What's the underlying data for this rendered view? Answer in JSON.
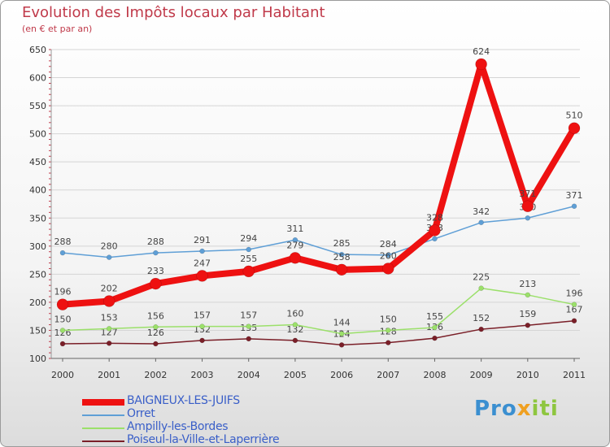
{
  "header": {
    "title": "Evolution des Impôts locaux par Habitant",
    "subtitle": "(en € et par an)"
  },
  "brand": {
    "part1": "Pro",
    "part2": "x",
    "part3": "iti"
  },
  "colors": {
    "title": "#c03a4a",
    "legend_text": "#3a5fc8",
    "grid": "#d5d5d5",
    "axis_text": "#333333"
  },
  "chart_data": {
    "type": "line",
    "title": "Evolution des Impôts locaux par Habitant",
    "subtitle": "(en € et par an)",
    "xlabel": "",
    "ylabel": "",
    "x": [
      "2000",
      "2001",
      "2002",
      "2003",
      "2004",
      "2005",
      "2006",
      "2007",
      "2008",
      "2009",
      "2010",
      "2011"
    ],
    "ylim": [
      100,
      650
    ],
    "yticks": [
      100,
      150,
      200,
      250,
      300,
      350,
      400,
      450,
      500,
      550,
      600,
      650
    ],
    "grid": true,
    "legend_position": "bottom-left",
    "series": [
      {
        "name": "Poiseul-la-Ville-et-Laperrière",
        "color": "#7a1f28",
        "values": [
          126,
          127,
          126,
          132,
          135,
          132,
          124,
          128,
          136,
          152,
          159,
          167
        ]
      },
      {
        "name": "Ampilly-les-Bordes",
        "color": "#9be06a",
        "values": [
          150,
          153,
          156,
          157,
          157,
          160,
          144,
          150,
          155,
          225,
          213,
          196
        ]
      },
      {
        "name": "Orret",
        "color": "#5f9fd6",
        "values": [
          288,
          280,
          288,
          291,
          294,
          311,
          285,
          284,
          313,
          342,
          350,
          371
        ]
      },
      {
        "name": "BAIGNEUX-LES-JUIFS",
        "color": "#ee1111",
        "values": [
          196,
          202,
          233,
          247,
          255,
          279,
          258,
          260,
          328,
          624,
          371,
          510
        ]
      }
    ],
    "legend_order": [
      "BAIGNEUX-LES-JUIFS",
      "Orret",
      "Ampilly-les-Bordes",
      "Poiseul-la-Ville-et-Laperrière"
    ]
  }
}
